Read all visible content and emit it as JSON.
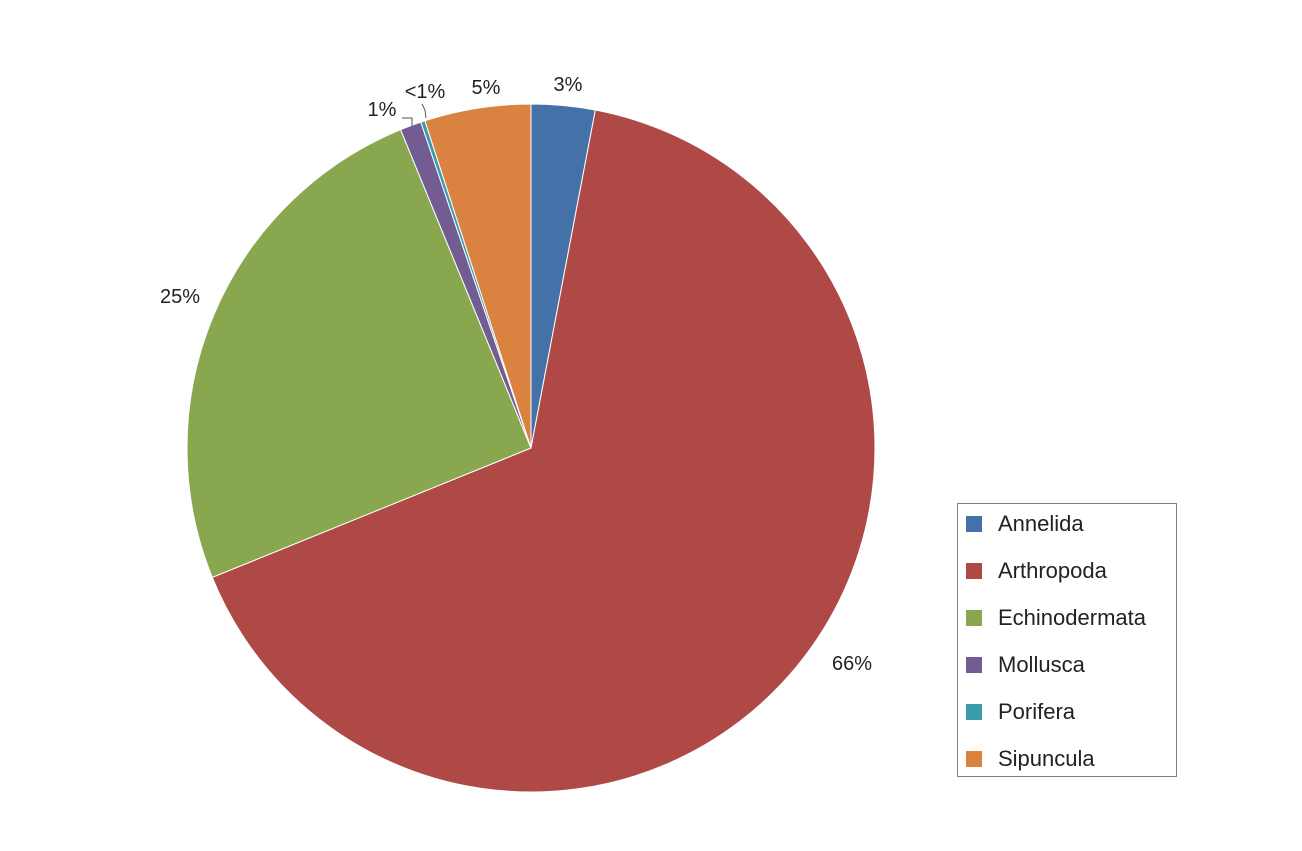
{
  "chart_data": {
    "type": "pie",
    "start_angle_deg": 0,
    "direction": "clockwise",
    "slices": [
      {
        "name": "Annelida",
        "value": 3,
        "label": "3%",
        "color": "#4472A8"
      },
      {
        "name": "Arthropoda",
        "value": 66,
        "label": "66%",
        "color": "#AE4946"
      },
      {
        "name": "Echinodermata",
        "value": 25,
        "label": "25%",
        "color": "#89A74F"
      },
      {
        "name": "Mollusca",
        "value": 1,
        "label": "1%",
        "color": "#735C91"
      },
      {
        "name": "Porifera",
        "value": 0.2,
        "label": "<1%",
        "color": "#3D9BAE"
      },
      {
        "name": "Sipuncula",
        "value": 5,
        "label": "5%",
        "color": "#DA8240"
      }
    ],
    "legend": {
      "position": "bottom-right",
      "entries": [
        "Annelida",
        "Arthropoda",
        "Echinodermata",
        "Mollusca",
        "Porifera",
        "Sipuncula"
      ]
    }
  }
}
